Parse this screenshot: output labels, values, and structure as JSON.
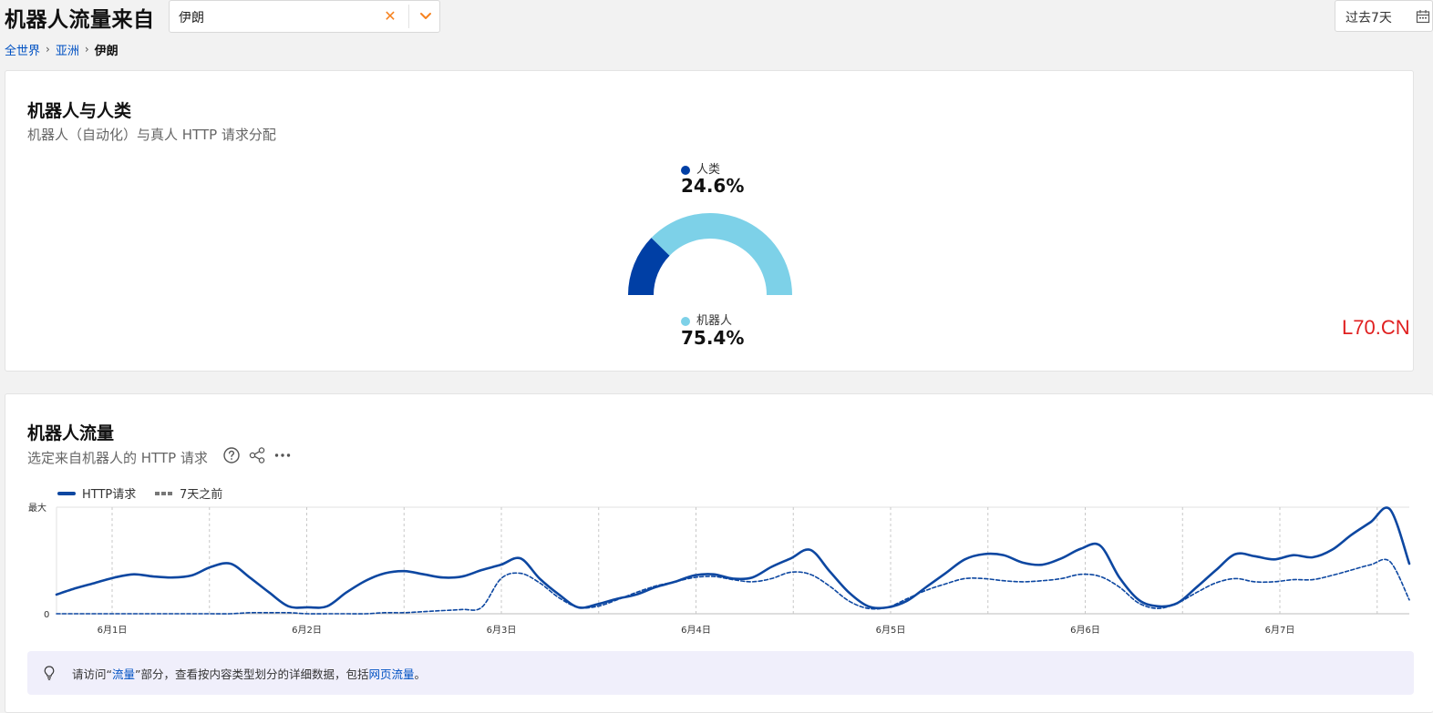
{
  "header": {
    "title": "机器人流量来自",
    "location_value": "伊朗",
    "date_range": "过去7天"
  },
  "breadcrumb": {
    "items": [
      "全世界",
      "亚洲"
    ],
    "current": "伊朗"
  },
  "bots_vs_humans": {
    "title": "机器人与人类",
    "subtitle": "机器人（自动化）与真人 HTTP 请求分配",
    "human_label": "人类",
    "human_value": "24.6%",
    "bot_label": "机器人",
    "bot_value": "75.4%",
    "human_fraction": 0.246,
    "bot_fraction": 0.754,
    "colors": {
      "human": "#003fa5",
      "bot": "#7dd1e8"
    }
  },
  "watermark": "L70.CN",
  "bot_traffic": {
    "title": "机器人流量",
    "subtitle": "选定来自机器人的 HTTP 请求",
    "legend_current": "HTTP请求",
    "legend_previous": "7天之前",
    "y_max_label": "最大",
    "y_min_label": "0",
    "tip_prefix": "请访问“",
    "tip_link1": "流量",
    "tip_mid": "”部分，查看按内容类型划分的详细数据，包括",
    "tip_link2": "网页流量",
    "tip_suffix": "。"
  },
  "chart_data": {
    "type": "line",
    "x_tick_labels": [
      "6月1日",
      "6月2日",
      "6月3日",
      "6月4日",
      "6月5日",
      "6月6日",
      "6月7日"
    ],
    "y_labels": [
      "最大",
      "0"
    ],
    "ylim": [
      0,
      1
    ],
    "grid": true,
    "legend_placement": "top-left",
    "series": [
      {
        "name": "HTTP请求",
        "style": "solid",
        "color": "#0d47a1",
        "x": [
          0,
          0.1,
          0.2,
          0.3,
          0.4,
          0.5,
          0.6,
          0.7,
          0.8,
          0.9,
          1.0,
          1.1,
          1.2,
          1.3,
          1.4,
          1.5,
          1.6,
          1.7,
          1.8,
          1.9,
          2.0,
          2.1,
          2.2,
          2.3,
          2.4,
          2.5,
          2.6,
          2.7,
          2.8,
          2.9,
          3.0,
          3.1,
          3.2,
          3.3,
          3.4,
          3.5,
          3.6,
          3.7,
          3.8,
          3.9,
          4.0,
          4.1,
          4.2,
          4.3,
          4.4,
          4.5,
          4.6,
          4.7,
          4.8,
          4.9,
          5.0,
          5.1,
          5.2,
          5.3,
          5.4,
          5.5,
          5.6,
          5.7,
          5.8,
          5.9,
          6.0,
          6.1,
          6.2,
          6.3,
          6.4,
          6.5,
          6.6,
          6.7,
          6.8,
          6.9,
          7.0
        ],
        "values": [
          0.18,
          0.24,
          0.29,
          0.34,
          0.37,
          0.35,
          0.34,
          0.36,
          0.44,
          0.47,
          0.34,
          0.2,
          0.07,
          0.06,
          0.07,
          0.2,
          0.31,
          0.38,
          0.4,
          0.37,
          0.34,
          0.35,
          0.41,
          0.46,
          0.52,
          0.33,
          0.18,
          0.06,
          0.09,
          0.14,
          0.18,
          0.25,
          0.3,
          0.36,
          0.37,
          0.33,
          0.34,
          0.44,
          0.52,
          0.6,
          0.4,
          0.2,
          0.07,
          0.06,
          0.12,
          0.25,
          0.38,
          0.51,
          0.56,
          0.55,
          0.48,
          0.46,
          0.52,
          0.61,
          0.64,
          0.34,
          0.13,
          0.07,
          0.1,
          0.25,
          0.41,
          0.56,
          0.54,
          0.51,
          0.55,
          0.53,
          0.6,
          0.74,
          0.86,
          0.98,
          0.47
        ]
      },
      {
        "name": "7天之前",
        "style": "dashed",
        "color": "#0d47a1",
        "x": [
          0,
          0.1,
          0.2,
          0.3,
          0.4,
          0.5,
          0.6,
          0.7,
          0.8,
          0.9,
          1.0,
          1.1,
          1.2,
          1.3,
          1.4,
          1.5,
          1.6,
          1.7,
          1.8,
          1.9,
          2.0,
          2.1,
          2.2,
          2.3,
          2.4,
          2.5,
          2.6,
          2.7,
          2.8,
          2.9,
          3.0,
          3.1,
          3.2,
          3.3,
          3.4,
          3.5,
          3.6,
          3.7,
          3.8,
          3.9,
          4.0,
          4.1,
          4.2,
          4.3,
          4.4,
          4.5,
          4.6,
          4.7,
          4.8,
          4.9,
          5.0,
          5.1,
          5.2,
          5.3,
          5.4,
          5.5,
          5.6,
          5.7,
          5.8,
          5.9,
          6.0,
          6.1,
          6.2,
          6.3,
          6.4,
          6.5,
          6.6,
          6.7,
          6.8,
          6.9,
          7.0
        ],
        "values": [
          0.0,
          0.0,
          0.0,
          0.0,
          0.0,
          0.0,
          0.0,
          0.0,
          0.0,
          0.0,
          0.01,
          0.01,
          0.01,
          0.0,
          0.0,
          0.0,
          0.0,
          0.01,
          0.01,
          0.02,
          0.03,
          0.04,
          0.06,
          0.33,
          0.38,
          0.29,
          0.15,
          0.06,
          0.07,
          0.13,
          0.2,
          0.26,
          0.3,
          0.34,
          0.35,
          0.32,
          0.3,
          0.33,
          0.39,
          0.37,
          0.26,
          0.12,
          0.05,
          0.06,
          0.14,
          0.22,
          0.28,
          0.33,
          0.33,
          0.31,
          0.3,
          0.31,
          0.33,
          0.37,
          0.35,
          0.25,
          0.1,
          0.05,
          0.1,
          0.2,
          0.29,
          0.33,
          0.3,
          0.3,
          0.32,
          0.32,
          0.36,
          0.41,
          0.46,
          0.49,
          0.13
        ]
      }
    ]
  }
}
